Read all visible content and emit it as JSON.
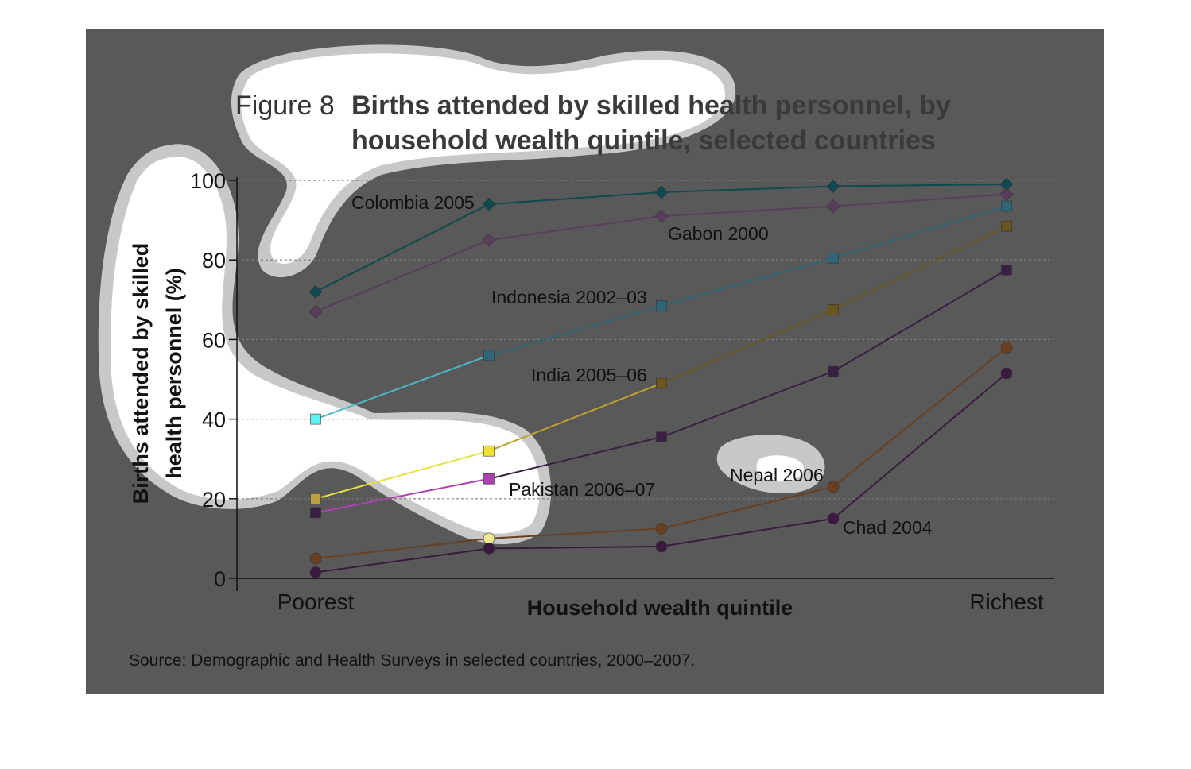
{
  "figure": {
    "label": "Figure 8",
    "title_line1": "Births attended by skilled health personnel, by",
    "title_line2": "household wealth quintile, selected countries"
  },
  "source": "Source: Demographic and Health Surveys in selected countries, 2000–2007.",
  "chart_data": {
    "type": "line",
    "title": "Births attended by skilled health personnel, by household wealth quintile, selected countries",
    "xlabel": "Household wealth quintile",
    "ylabel_line1": "Births attended by skilled",
    "ylabel_line2": "health personnel (%)",
    "categories": [
      "Poorest",
      "",
      "",
      "",
      "Richest"
    ],
    "ylim": [
      0,
      100
    ],
    "yticks": [
      "0",
      "20",
      "40",
      "60",
      "80",
      "100"
    ],
    "grid": true,
    "series": [
      {
        "name": "Colombia 2005",
        "marker": "diamond",
        "color": "#0e4a4f",
        "values": [
          72,
          94,
          97,
          98.5,
          99
        ]
      },
      {
        "name": "Gabon 2000",
        "marker": "diamond",
        "color": "#5a3d5c",
        "values": [
          67,
          85,
          91,
          93.5,
          96.5
        ]
      },
      {
        "name": "Indonesia 2002–03",
        "marker": "square",
        "color": "#2e6577",
        "values": [
          40,
          56,
          68.5,
          80.5,
          93.5
        ]
      },
      {
        "name": "India 2005–06",
        "marker": "square",
        "color": "#6b5520",
        "values": [
          20,
          32,
          49,
          67.5,
          88.5
        ]
      },
      {
        "name": "Pakistan 2006–07",
        "marker": "square",
        "color": "#3a1f45",
        "values": [
          16.5,
          25,
          35.5,
          52,
          77.5
        ]
      },
      {
        "name": "Nepal 2006",
        "marker": "circle",
        "color": "#6a3f1f",
        "values": [
          5,
          10,
          12.5,
          23,
          58
        ]
      },
      {
        "name": "Chad 2004",
        "marker": "circle",
        "color": "#3a1a3f",
        "values": [
          1.5,
          7.5,
          8,
          15,
          51.5
        ]
      }
    ]
  }
}
